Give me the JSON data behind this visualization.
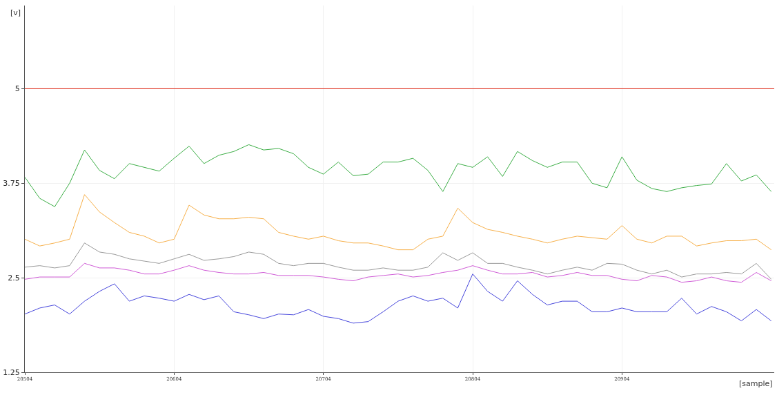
{
  "chart_data": {
    "type": "line",
    "xlabel": "[sample]",
    "ylabel": "[v]",
    "x": [
      20504,
      20514,
      20524,
      20534,
      20544,
      20554,
      20564,
      20574,
      20584,
      20594,
      20604,
      20614,
      20624,
      20634,
      20644,
      20654,
      20664,
      20674,
      20684,
      20694,
      20704,
      20714,
      20724,
      20734,
      20744,
      20754,
      20764,
      20774,
      20784,
      20794,
      20804,
      20814,
      20824,
      20834,
      20844,
      20854,
      20864,
      20874,
      20884,
      20894,
      20904,
      20914,
      20924,
      20934,
      20944,
      20954,
      20964,
      20974,
      20984,
      20994,
      21004
    ],
    "xlim": [
      20504,
      21006
    ],
    "xticks": [
      20504,
      20604,
      20704,
      20804,
      20904
    ],
    "ylim": [
      1.25,
      6.1
    ],
    "yticks": [
      1.25,
      2.5,
      3.75,
      5
    ],
    "grid": true,
    "marker": "none",
    "line_style": "solid",
    "ref_lines": [
      {
        "axis": "y",
        "value": 5,
        "color": "#e0301e"
      }
    ],
    "series": [
      {
        "color": "#3cae46",
        "values": [
          3.83,
          3.55,
          3.44,
          3.75,
          4.19,
          3.92,
          3.81,
          4.01,
          3.96,
          3.91,
          4.08,
          4.24,
          4.01,
          4.12,
          4.17,
          4.26,
          4.19,
          4.21,
          4.14,
          3.96,
          3.87,
          4.03,
          3.85,
          3.87,
          4.03,
          4.03,
          4.08,
          3.92,
          3.64,
          4.01,
          3.96,
          4.1,
          3.84,
          4.17,
          4.05,
          3.96,
          4.03,
          4.03,
          3.75,
          3.69,
          4.1,
          3.79,
          3.68,
          3.64,
          3.69,
          3.72,
          3.74,
          4.01,
          3.78,
          3.86,
          3.64
        ]
      },
      {
        "color": "#f7b04a",
        "values": [
          3.01,
          2.92,
          2.96,
          3.01,
          3.6,
          3.37,
          3.23,
          3.1,
          3.05,
          2.96,
          3.01,
          3.46,
          3.33,
          3.28,
          3.28,
          3.3,
          3.28,
          3.1,
          3.05,
          3.01,
          3.05,
          2.99,
          2.96,
          2.96,
          2.92,
          2.87,
          2.87,
          3.01,
          3.05,
          3.42,
          3.23,
          3.14,
          3.1,
          3.05,
          3.01,
          2.96,
          3.01,
          3.05,
          3.03,
          3.01,
          3.19,
          3.01,
          2.96,
          3.05,
          3.05,
          2.92,
          2.96,
          2.99,
          2.99,
          3.01,
          2.87
        ]
      },
      {
        "color": "#999999",
        "values": [
          2.64,
          2.66,
          2.63,
          2.66,
          2.96,
          2.84,
          2.81,
          2.75,
          2.72,
          2.69,
          2.75,
          2.81,
          2.73,
          2.75,
          2.78,
          2.84,
          2.81,
          2.69,
          2.66,
          2.69,
          2.69,
          2.64,
          2.6,
          2.6,
          2.63,
          2.6,
          2.6,
          2.64,
          2.83,
          2.73,
          2.83,
          2.69,
          2.69,
          2.64,
          2.6,
          2.55,
          2.6,
          2.64,
          2.6,
          2.69,
          2.68,
          2.6,
          2.55,
          2.6,
          2.51,
          2.55,
          2.55,
          2.57,
          2.55,
          2.69,
          2.48
        ]
      },
      {
        "color": "#cf5ad6",
        "values": [
          2.48,
          2.51,
          2.51,
          2.51,
          2.69,
          2.63,
          2.63,
          2.6,
          2.55,
          2.55,
          2.6,
          2.66,
          2.6,
          2.57,
          2.55,
          2.55,
          2.57,
          2.53,
          2.53,
          2.53,
          2.51,
          2.48,
          2.46,
          2.51,
          2.53,
          2.55,
          2.51,
          2.53,
          2.57,
          2.6,
          2.66,
          2.6,
          2.55,
          2.55,
          2.57,
          2.51,
          2.53,
          2.57,
          2.53,
          2.53,
          2.48,
          2.46,
          2.53,
          2.51,
          2.44,
          2.46,
          2.51,
          2.46,
          2.44,
          2.57,
          2.46
        ]
      },
      {
        "color": "#4646dc",
        "values": [
          2.02,
          2.1,
          2.14,
          2.02,
          2.19,
          2.32,
          2.42,
          2.19,
          2.26,
          2.23,
          2.19,
          2.28,
          2.21,
          2.26,
          2.05,
          2.01,
          1.96,
          2.02,
          2.01,
          2.08,
          1.99,
          1.96,
          1.9,
          1.92,
          2.05,
          2.19,
          2.26,
          2.19,
          2.23,
          2.1,
          2.55,
          2.32,
          2.19,
          2.46,
          2.28,
          2.14,
          2.19,
          2.19,
          2.05,
          2.05,
          2.1,
          2.05,
          2.05,
          2.05,
          2.23,
          2.02,
          2.12,
          2.05,
          1.93,
          2.08,
          1.93
        ]
      }
    ]
  }
}
